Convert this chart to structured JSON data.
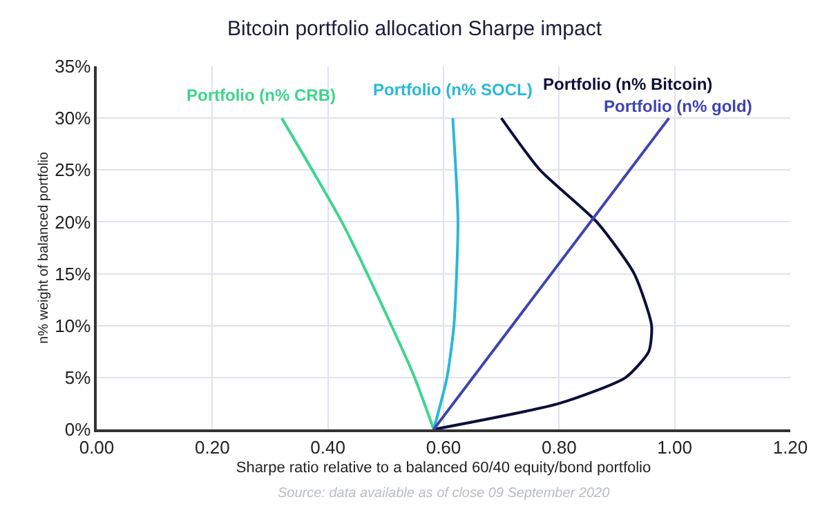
{
  "chart_data": {
    "type": "line",
    "title": "Bitcoin portfolio allocation Sharpe impact",
    "xlabel": "Sharpe ratio relative to a balanced 60/40 equity/bond portfolio",
    "ylabel": "n% weight of balanced portfolio",
    "series": [
      {
        "name": "Portfolio (n% CRB)",
        "color": "#3dd68c",
        "x": [
          0.583,
          0.55,
          0.51,
          0.424,
          0.32
        ],
        "values": [
          0,
          5,
          10,
          20,
          30
        ]
      },
      {
        "name": "Portfolio (n% SOCL)",
        "color": "#29b8d8",
        "x": [
          0.583,
          0.606,
          0.618,
          0.625,
          0.616
        ],
        "values": [
          0,
          5,
          10,
          20,
          30
        ]
      },
      {
        "name": "Portfolio (n% Bitcoin)",
        "color": "#0b0f3a",
        "x": [
          0.583,
          0.8,
          0.915,
          0.955,
          0.96,
          0.93,
          0.865,
          0.767,
          0.7
        ],
        "values": [
          0,
          2.5,
          5,
          7.5,
          10,
          15,
          20,
          25,
          30
        ]
      },
      {
        "name": "Portfolio (n% gold)",
        "color": "#3f44b0",
        "x": [
          0.583,
          0.99
        ],
        "values": [
          0,
          30
        ]
      }
    ],
    "xlim": [
      0,
      1.2
    ],
    "xticks": [
      {
        "value": 0,
        "label": "0.00"
      },
      {
        "value": 0.2,
        "label": "0.20"
      },
      {
        "value": 0.4,
        "label": "0.40"
      },
      {
        "value": 0.6,
        "label": "0.60"
      },
      {
        "value": 0.8,
        "label": "0.80"
      },
      {
        "value": 1,
        "label": "1.00"
      },
      {
        "value": 1.2,
        "label": "1.20"
      }
    ],
    "ylim": [
      0,
      35
    ],
    "yticks": [
      {
        "value": 0,
        "label": "0%"
      },
      {
        "value": 5,
        "label": "5%"
      },
      {
        "value": 10,
        "label": "10%"
      },
      {
        "value": 15,
        "label": "15%"
      },
      {
        "value": 20,
        "label": "20%"
      },
      {
        "value": 25,
        "label": "25%"
      },
      {
        "value": 30,
        "label": "30%"
      },
      {
        "value": 35,
        "label": "35%"
      }
    ],
    "grid": true,
    "legend": false,
    "marker": "none",
    "line_style": "solid",
    "annotations": [
      "Source: data available as of close 09 September 2020"
    ]
  }
}
